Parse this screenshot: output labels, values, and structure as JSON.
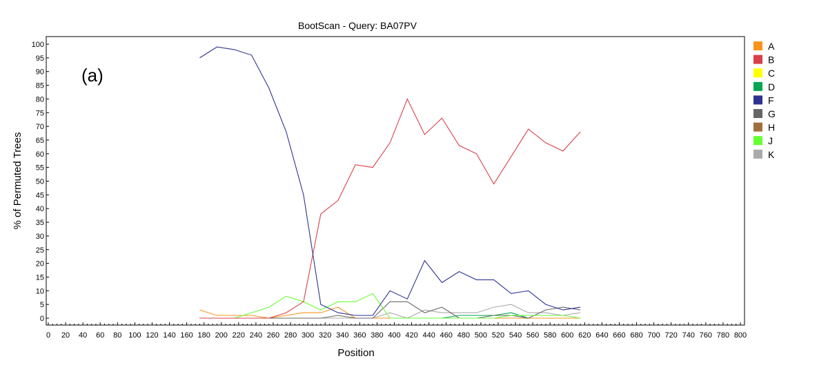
{
  "chart_data": {
    "type": "line",
    "title": "BootScan - Query: BA07PV",
    "panel_label": "(a)",
    "xlabel": "Position",
    "ylabel": "% of Permuted Trees",
    "xlim": [
      0,
      800
    ],
    "ylim": [
      0,
      100
    ],
    "xticks": [
      0,
      20,
      40,
      60,
      80,
      100,
      120,
      140,
      160,
      180,
      200,
      220,
      240,
      260,
      280,
      300,
      320,
      340,
      360,
      380,
      400,
      420,
      440,
      460,
      480,
      500,
      520,
      540,
      560,
      580,
      600,
      620,
      640,
      660,
      680,
      700,
      720,
      740,
      760,
      780,
      800
    ],
    "yticks": [
      0,
      5,
      10,
      15,
      20,
      25,
      30,
      35,
      40,
      45,
      50,
      55,
      60,
      65,
      70,
      75,
      80,
      85,
      90,
      95,
      100
    ],
    "grid": false,
    "legend_position": "right",
    "x": [
      175,
      195,
      215,
      235,
      255,
      275,
      295,
      315,
      335,
      355,
      375,
      395,
      415,
      435,
      455,
      475,
      495,
      515,
      535,
      555,
      575,
      595,
      615
    ],
    "series": [
      {
        "name": "A",
        "color": "#f7941d",
        "values": [
          3,
          1,
          1,
          1,
          0,
          1,
          2,
          2,
          4,
          0,
          0,
          0,
          0,
          0,
          0,
          0,
          0,
          0,
          0,
          0,
          0,
          0,
          0
        ]
      },
      {
        "name": "B",
        "color": "#d9404a",
        "values": [
          0,
          0,
          0,
          0,
          0,
          2,
          6,
          38,
          43,
          56,
          55,
          64,
          80,
          67,
          73,
          63,
          60,
          49,
          59,
          69,
          64,
          61,
          68
        ]
      },
      {
        "name": "C",
        "color": "#ffff00",
        "values": [
          0,
          0,
          0,
          0,
          0,
          0,
          0,
          0,
          0,
          0,
          0,
          0,
          0,
          0,
          0,
          0,
          0,
          0,
          0,
          0,
          0,
          0,
          0
        ]
      },
      {
        "name": "D",
        "color": "#00a651",
        "values": [
          0,
          0,
          0,
          0,
          0,
          0,
          0,
          0,
          0,
          0,
          0,
          0,
          0,
          0,
          0,
          1,
          1,
          1,
          2,
          0,
          0,
          0,
          0
        ]
      },
      {
        "name": "F",
        "color": "#2e3192",
        "values": [
          95,
          99,
          98,
          96,
          84,
          68,
          45,
          5,
          2,
          1,
          1,
          10,
          7,
          21,
          13,
          17,
          14,
          14,
          9,
          10,
          5,
          3,
          4
        ]
      },
      {
        "name": "G",
        "color": "#666666",
        "values": [
          0,
          0,
          0,
          0,
          0,
          0,
          0,
          0,
          1,
          0,
          0,
          6,
          6,
          2,
          4,
          0,
          0,
          1,
          1,
          0,
          3,
          4,
          3
        ]
      },
      {
        "name": "H",
        "color": "#a0703c",
        "values": [
          0,
          0,
          0,
          0,
          0,
          0,
          0,
          0,
          0,
          0,
          0,
          0,
          0,
          0,
          0,
          0,
          0,
          0,
          0,
          0,
          0,
          0,
          0
        ]
      },
      {
        "name": "J",
        "color": "#66ff33",
        "values": [
          0,
          0,
          0,
          2,
          4,
          8,
          6,
          3,
          6,
          6,
          9,
          0,
          0,
          0,
          0,
          0,
          0,
          0,
          1,
          1,
          1,
          1,
          0
        ]
      },
      {
        "name": "K",
        "color": "#aaaaaa",
        "values": [
          0,
          0,
          0,
          0,
          0,
          0,
          0,
          0,
          0,
          0,
          0,
          2,
          0,
          3,
          2,
          2,
          2,
          4,
          5,
          2,
          2,
          1,
          2
        ]
      }
    ]
  }
}
